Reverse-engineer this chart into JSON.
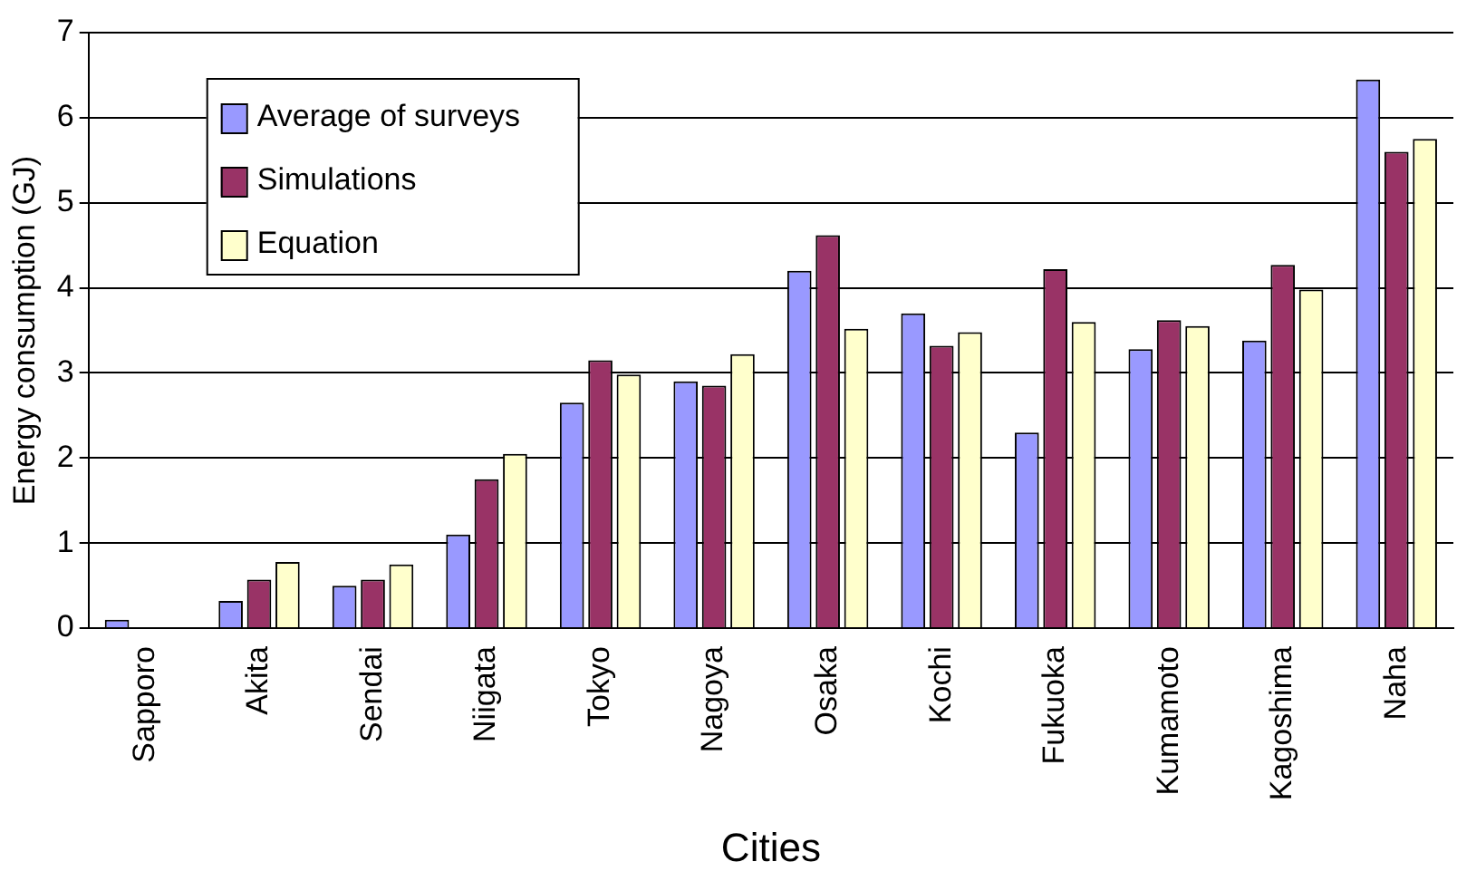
{
  "chart_data": {
    "type": "bar",
    "xlabel": "Cities",
    "ylabel": "Energy consumption (GJ)",
    "categories": [
      "Sapporo",
      "Akita",
      "Sendai",
      "Niigata",
      "Tokyo",
      "Nagoya",
      "Osaka",
      "Kochi",
      "Fukuoka",
      "Kumamoto",
      "Kagoshima",
      "Naha"
    ],
    "series": [
      {
        "name": "Average of surveys",
        "color": "#9999ff",
        "values": [
          0.1,
          0.32,
          0.5,
          1.1,
          2.65,
          2.9,
          4.2,
          3.7,
          2.3,
          3.28,
          3.38,
          6.45
        ]
      },
      {
        "name": "Simulations",
        "color": "#993366",
        "values": [
          0,
          0.57,
          0.57,
          1.75,
          3.15,
          2.85,
          4.62,
          3.32,
          4.22,
          3.62,
          4.27,
          5.6
        ]
      },
      {
        "name": "Equation",
        "color": "#ffffcc",
        "values": [
          0,
          0.78,
          0.75,
          2.05,
          2.98,
          3.22,
          3.52,
          3.48,
          3.6,
          3.55,
          3.98,
          5.75
        ]
      }
    ],
    "ylim": [
      0,
      7
    ],
    "yticks": [
      0,
      1,
      2,
      3,
      4,
      5,
      6,
      7
    ],
    "grid": "y",
    "legend": "top left"
  }
}
